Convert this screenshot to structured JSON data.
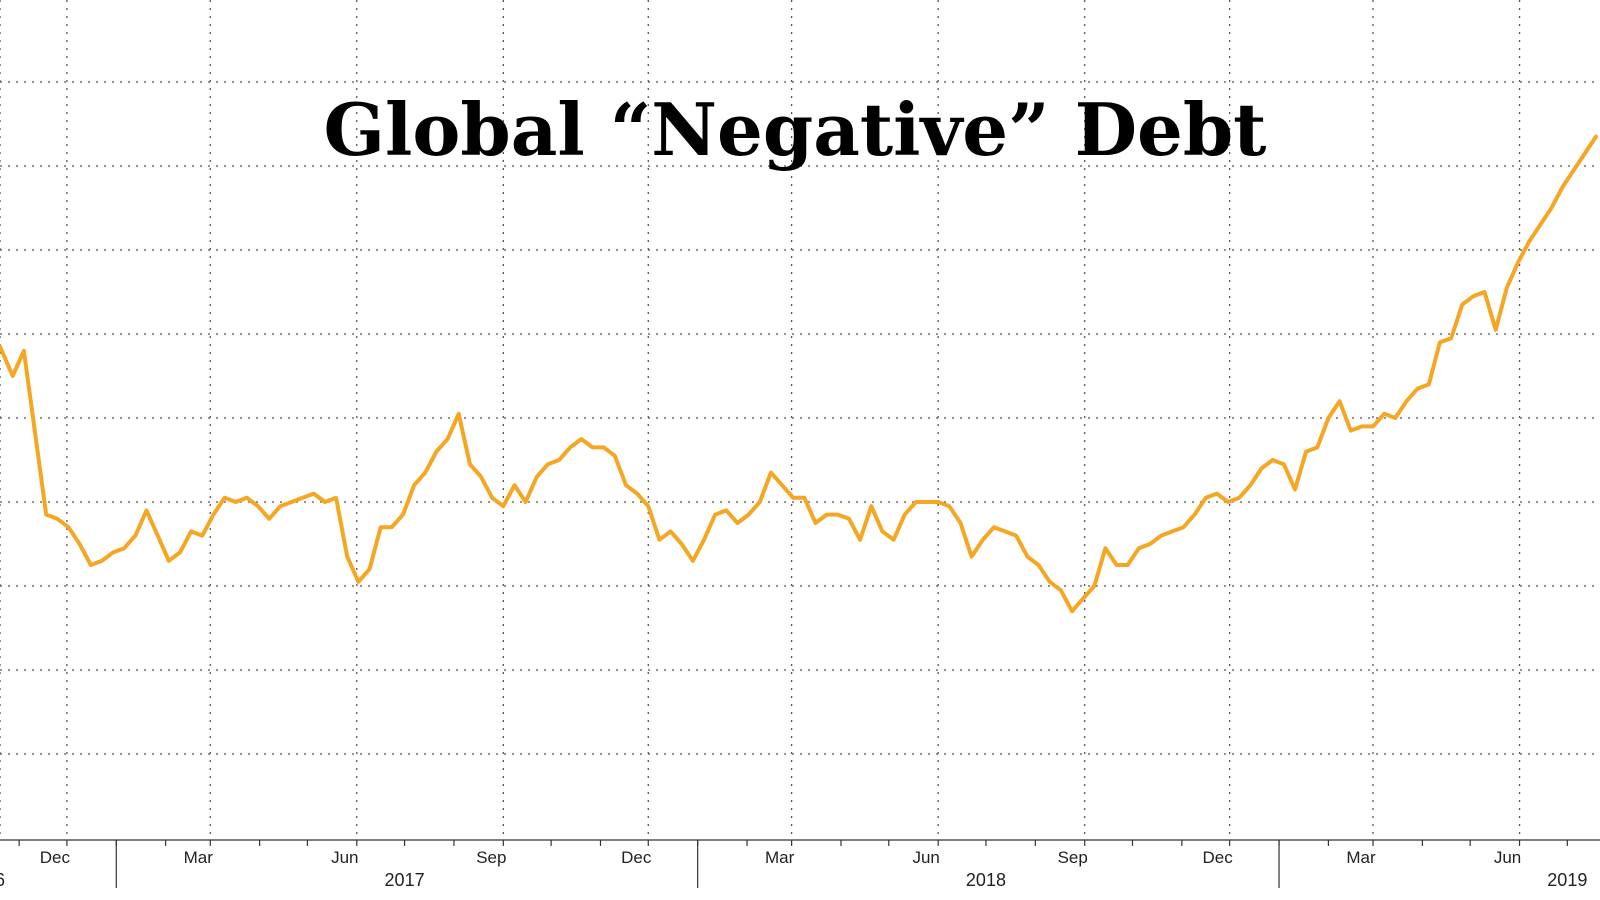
{
  "chart_data": {
    "type": "line",
    "title": "Global “Negative” Debt",
    "xlabel": "",
    "ylabel": "",
    "grid": true,
    "xlim": [
      "2016-10-20",
      "2019-07-19"
    ],
    "ylim": [
      0,
      9
    ],
    "month_ticks": [
      {
        "label": "...",
        "date": "2016-10-20"
      },
      {
        "label": "Dec",
        "date": "2016-12-01"
      },
      {
        "label": "Mar",
        "date": "2017-03-01"
      },
      {
        "label": "Jun",
        "date": "2017-06-01"
      },
      {
        "label": "Sep",
        "date": "2017-09-01"
      },
      {
        "label": "Dec",
        "date": "2017-12-01"
      },
      {
        "label": "Mar",
        "date": "2018-03-01"
      },
      {
        "label": "Jun",
        "date": "2018-06-01"
      },
      {
        "label": "Sep",
        "date": "2018-09-01"
      },
      {
        "label": "Dec",
        "date": "2018-12-01"
      },
      {
        "label": "Mar",
        "date": "2019-03-01"
      },
      {
        "label": "Jun",
        "date": "2019-06-01"
      }
    ],
    "year_ticks": [
      {
        "label": "6",
        "date": "2016-07-01"
      },
      {
        "label": "2017",
        "date": "2017-07-01"
      },
      {
        "label": "2018",
        "date": "2018-07-01"
      },
      {
        "label": "2019",
        "date": "2019-07-01"
      }
    ],
    "series": [
      {
        "color": "#f5a623",
        "points": [
          [
            "2016-10-20",
            5.85
          ],
          [
            "2016-10-28",
            5.5
          ],
          [
            "2016-11-04",
            5.8
          ],
          [
            "2016-11-18",
            3.85
          ],
          [
            "2016-11-25",
            3.8
          ],
          [
            "2016-12-02",
            3.7
          ],
          [
            "2016-12-09",
            3.5
          ],
          [
            "2016-12-16",
            3.25
          ],
          [
            "2016-12-23",
            3.3
          ],
          [
            "2016-12-30",
            3.4
          ],
          [
            "2017-01-06",
            3.45
          ],
          [
            "2017-01-13",
            3.6
          ],
          [
            "2017-01-20",
            3.9
          ],
          [
            "2017-01-27",
            3.6
          ],
          [
            "2017-02-03",
            3.3
          ],
          [
            "2017-02-10",
            3.4
          ],
          [
            "2017-02-17",
            3.65
          ],
          [
            "2017-02-24",
            3.6
          ],
          [
            "2017-03-03",
            3.85
          ],
          [
            "2017-03-10",
            4.05
          ],
          [
            "2017-03-17",
            4.0
          ],
          [
            "2017-03-24",
            4.05
          ],
          [
            "2017-03-31",
            3.95
          ],
          [
            "2017-04-07",
            3.8
          ],
          [
            "2017-04-14",
            3.95
          ],
          [
            "2017-04-21",
            4.0
          ],
          [
            "2017-04-28",
            4.05
          ],
          [
            "2017-05-05",
            4.1
          ],
          [
            "2017-05-12",
            4.0
          ],
          [
            "2017-05-19",
            4.05
          ],
          [
            "2017-05-26",
            3.35
          ],
          [
            "2017-06-02",
            3.05
          ],
          [
            "2017-06-09",
            3.2
          ],
          [
            "2017-06-16",
            3.7
          ],
          [
            "2017-06-23",
            3.7
          ],
          [
            "2017-06-30",
            3.85
          ],
          [
            "2017-07-07",
            4.2
          ],
          [
            "2017-07-14",
            4.35
          ],
          [
            "2017-07-21",
            4.6
          ],
          [
            "2017-07-28",
            4.75
          ],
          [
            "2017-08-04",
            5.05
          ],
          [
            "2017-08-11",
            4.45
          ],
          [
            "2017-08-18",
            4.3
          ],
          [
            "2017-08-25",
            4.05
          ],
          [
            "2017-09-01",
            3.95
          ],
          [
            "2017-09-08",
            4.2
          ],
          [
            "2017-09-15",
            4.0
          ],
          [
            "2017-09-22",
            4.3
          ],
          [
            "2017-09-29",
            4.45
          ],
          [
            "2017-10-06",
            4.5
          ],
          [
            "2017-10-13",
            4.65
          ],
          [
            "2017-10-20",
            4.75
          ],
          [
            "2017-10-27",
            4.65
          ],
          [
            "2017-11-03",
            4.65
          ],
          [
            "2017-11-10",
            4.55
          ],
          [
            "2017-11-17",
            4.2
          ],
          [
            "2017-11-24",
            4.1
          ],
          [
            "2017-12-01",
            3.95
          ],
          [
            "2017-12-08",
            3.55
          ],
          [
            "2017-12-15",
            3.65
          ],
          [
            "2017-12-22",
            3.5
          ],
          [
            "2017-12-29",
            3.3
          ],
          [
            "2018-01-05",
            3.55
          ],
          [
            "2018-01-12",
            3.85
          ],
          [
            "2018-01-19",
            3.9
          ],
          [
            "2018-01-26",
            3.75
          ],
          [
            "2018-02-02",
            3.85
          ],
          [
            "2018-02-09",
            4.0
          ],
          [
            "2018-02-16",
            4.35
          ],
          [
            "2018-02-23",
            4.2
          ],
          [
            "2018-03-02",
            4.05
          ],
          [
            "2018-03-09",
            4.05
          ],
          [
            "2018-03-16",
            3.75
          ],
          [
            "2018-03-23",
            3.85
          ],
          [
            "2018-03-30",
            3.85
          ],
          [
            "2018-04-06",
            3.8
          ],
          [
            "2018-04-13",
            3.55
          ],
          [
            "2018-04-20",
            3.95
          ],
          [
            "2018-04-27",
            3.65
          ],
          [
            "2018-05-04",
            3.55
          ],
          [
            "2018-05-11",
            3.85
          ],
          [
            "2018-05-18",
            4.0
          ],
          [
            "2018-05-25",
            4.0
          ],
          [
            "2018-06-01",
            4.0
          ],
          [
            "2018-06-08",
            3.95
          ],
          [
            "2018-06-15",
            3.75
          ],
          [
            "2018-06-22",
            3.35
          ],
          [
            "2018-06-29",
            3.55
          ],
          [
            "2018-07-06",
            3.7
          ],
          [
            "2018-07-13",
            3.65
          ],
          [
            "2018-07-20",
            3.6
          ],
          [
            "2018-07-27",
            3.35
          ],
          [
            "2018-08-03",
            3.25
          ],
          [
            "2018-08-10",
            3.05
          ],
          [
            "2018-08-17",
            2.95
          ],
          [
            "2018-08-24",
            2.7
          ],
          [
            "2018-08-31",
            2.85
          ],
          [
            "2018-09-07",
            3.0
          ],
          [
            "2018-09-14",
            3.45
          ],
          [
            "2018-09-21",
            3.25
          ],
          [
            "2018-09-28",
            3.25
          ],
          [
            "2018-10-05",
            3.45
          ],
          [
            "2018-10-12",
            3.5
          ],
          [
            "2018-10-19",
            3.6
          ],
          [
            "2018-10-26",
            3.65
          ],
          [
            "2018-11-02",
            3.7
          ],
          [
            "2018-11-09",
            3.85
          ],
          [
            "2018-11-16",
            4.05
          ],
          [
            "2018-11-23",
            4.1
          ],
          [
            "2018-11-30",
            4.0
          ],
          [
            "2018-12-07",
            4.05
          ],
          [
            "2018-12-14",
            4.2
          ],
          [
            "2018-12-21",
            4.4
          ],
          [
            "2018-12-28",
            4.5
          ],
          [
            "2019-01-04",
            4.45
          ],
          [
            "2019-01-11",
            4.15
          ],
          [
            "2019-01-18",
            4.6
          ],
          [
            "2019-01-25",
            4.65
          ],
          [
            "2019-02-01",
            5.0
          ],
          [
            "2019-02-08",
            5.2
          ],
          [
            "2019-02-15",
            4.85
          ],
          [
            "2019-02-22",
            4.9
          ],
          [
            "2019-03-01",
            4.9
          ],
          [
            "2019-03-08",
            5.05
          ],
          [
            "2019-03-15",
            5.0
          ],
          [
            "2019-03-22",
            5.2
          ],
          [
            "2019-03-29",
            5.35
          ],
          [
            "2019-04-05",
            5.4
          ],
          [
            "2019-04-12",
            5.9
          ],
          [
            "2019-04-19",
            5.95
          ],
          [
            "2019-04-26",
            6.35
          ],
          [
            "2019-05-03",
            6.45
          ],
          [
            "2019-05-10",
            6.5
          ],
          [
            "2019-05-17",
            6.05
          ],
          [
            "2019-05-24",
            6.55
          ],
          [
            "2019-05-31",
            6.85
          ],
          [
            "2019-06-07",
            7.1
          ],
          [
            "2019-06-14",
            7.3
          ],
          [
            "2019-06-21",
            7.5
          ],
          [
            "2019-06-28",
            7.75
          ],
          [
            "2019-07-05",
            7.95
          ],
          [
            "2019-07-12",
            8.15
          ],
          [
            "2019-07-19",
            8.35
          ]
        ]
      }
    ]
  }
}
